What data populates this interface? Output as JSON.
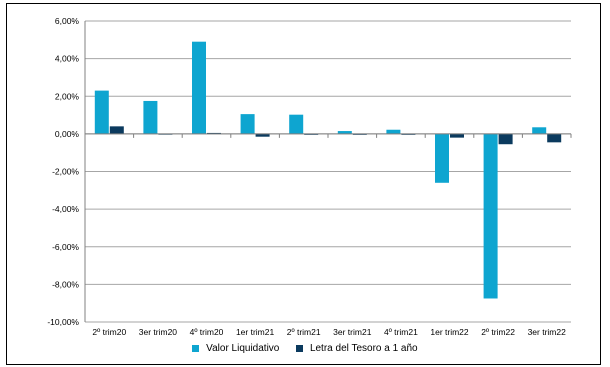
{
  "chart_data": {
    "type": "bar",
    "categories": [
      "2º trim20",
      "3er trim20",
      "4º trim20",
      "1er trim21",
      "2º trim21",
      "3er trim21",
      "4º trim21",
      "1er trim22",
      "2º trim22",
      "3er trim22"
    ],
    "series": [
      {
        "name": "Valor Liquidativo",
        "color": "#0EA5D0",
        "values": [
          2.3,
          1.75,
          4.9,
          1.05,
          1.02,
          0.15,
          0.22,
          -2.6,
          -8.75,
          0.35
        ]
      },
      {
        "name": "Letra del Tesoro a 1 año",
        "color": "#0B3A5E",
        "values": [
          0.4,
          -0.02,
          0.05,
          -0.15,
          -0.05,
          -0.05,
          -0.05,
          -0.2,
          -0.55,
          -0.45
        ]
      }
    ],
    "y_ticks": [
      "6,00%",
      "4,00%",
      "2,00%",
      "0,00%",
      "-2,00%",
      "-4,00%",
      "-6,00%",
      "-8,00%",
      "-10,00%"
    ],
    "ylim": [
      -10,
      6
    ],
    "grid": true,
    "legend_position": "bottom"
  }
}
